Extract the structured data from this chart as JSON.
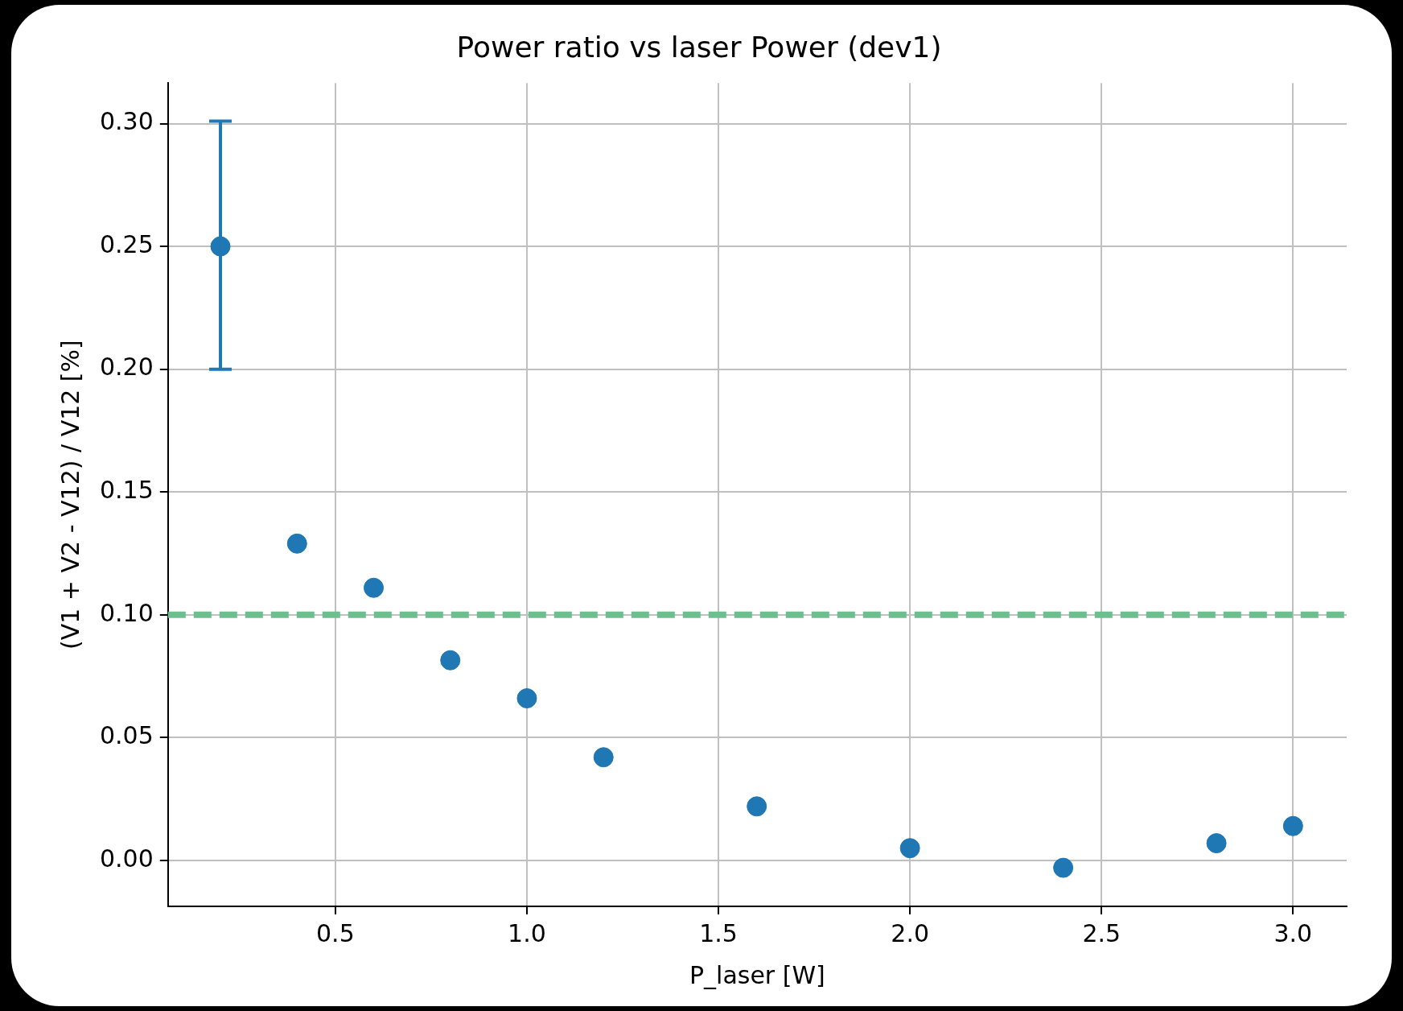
{
  "chart_data": {
    "type": "scatter",
    "title": "Power ratio vs laser Power (dev1)",
    "xlabel": "P_laser [W]",
    "ylabel": "(V1 + V2 - V12) / V12 [%]",
    "series": [
      {
        "color": "#1f77b4",
        "x": [
          0.2,
          0.4,
          0.6,
          0.8,
          1.0,
          1.2,
          1.6,
          2.0,
          2.4,
          2.8,
          3.0
        ],
        "values": [
          0.25,
          0.129,
          0.111,
          0.0815,
          0.066,
          0.042,
          0.022,
          0.005,
          -0.003,
          0.007,
          0.014
        ],
        "errors": [
          [
            0.2,
            0.301
          ],
          null,
          null,
          null,
          null,
          null,
          null,
          null,
          null,
          null,
          null
        ]
      }
    ],
    "xlim": [
      0.063,
      3.14
    ],
    "xticks": [
      {
        "value": 0.5,
        "label": "0.5"
      },
      {
        "value": 1.0,
        "label": "1.0"
      },
      {
        "value": 1.5,
        "label": "1.5"
      },
      {
        "value": 2.0,
        "label": "2.0"
      },
      {
        "value": 2.5,
        "label": "2.5"
      },
      {
        "value": 3.0,
        "label": "3.0"
      }
    ],
    "ylim": [
      -0.0187,
      0.3165
    ],
    "yticks": [
      {
        "value": 0,
        "label": "0.00"
      },
      {
        "value": 0.05,
        "label": "0.05"
      },
      {
        "value": 0.1,
        "label": "0.10"
      },
      {
        "value": 0.15,
        "label": "0.15"
      },
      {
        "value": 0.2,
        "label": "0.20"
      },
      {
        "value": 0.25,
        "label": "0.25"
      },
      {
        "value": 0.3,
        "label": "0.30"
      }
    ],
    "ref_lines": [
      {
        "axis": "y",
        "value": 0.1,
        "color": "#6dbf8f",
        "line_style": "dashed"
      }
    ],
    "grid": true,
    "legend": false,
    "marker": "circle"
  }
}
